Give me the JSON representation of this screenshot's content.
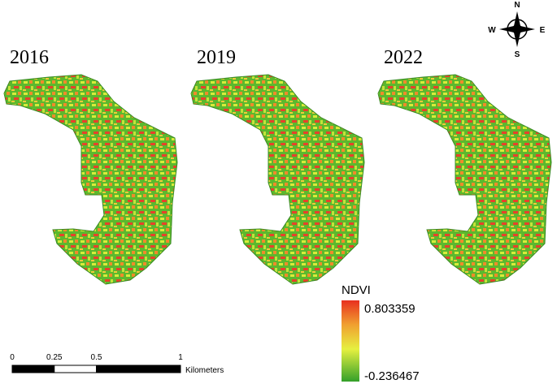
{
  "panels": [
    {
      "year": "2016"
    },
    {
      "year": "2019"
    },
    {
      "year": "2022"
    }
  ],
  "legend": {
    "title": "NDVI",
    "max": 0.803359,
    "min": -0.236467
  },
  "scale_bar": {
    "ticks": [
      0,
      0.25,
      0.5,
      1
    ],
    "unit": "Kilometers"
  },
  "compass": {
    "north": "N",
    "east": "E",
    "south": "S",
    "west": "W"
  }
}
